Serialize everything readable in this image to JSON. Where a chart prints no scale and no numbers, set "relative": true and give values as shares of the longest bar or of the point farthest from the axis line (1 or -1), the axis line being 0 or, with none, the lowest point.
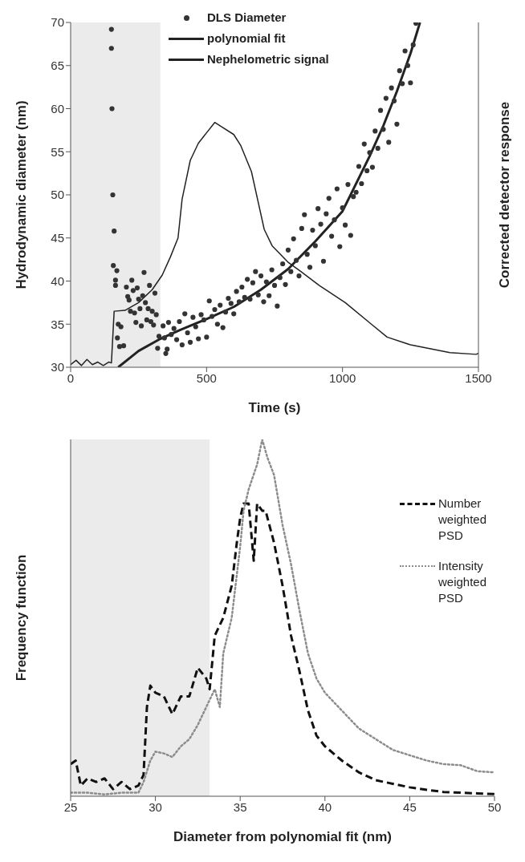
{
  "chart_data": [
    {
      "type": "line",
      "xlabel": "Time (s)",
      "ylabel": "Hydrodynamic diameter (nm)",
      "y2label": "Corrected detector response",
      "xlim": [
        0,
        1500
      ],
      "xticks": [
        0,
        500,
        1000,
        1500
      ],
      "ylim": [
        30,
        70
      ],
      "yticks": [
        30,
        35,
        40,
        45,
        50,
        55,
        60,
        65,
        70
      ],
      "legend": "top",
      "bands": [
        {
          "axis": "x",
          "from": 0,
          "to": 330,
          "color": "#ebebeb"
        }
      ],
      "series": [
        {
          "name": "DLS Diameter",
          "type": "scatter",
          "marker": "circle",
          "color": "#333333",
          "x": [
            150,
            150,
            152,
            155,
            160,
            157,
            170,
            165,
            165,
            175,
            172,
            180,
            185,
            195,
            205,
            210,
            215,
            220,
            225,
            230,
            235,
            240,
            245,
            250,
            255,
            260,
            265,
            270,
            275,
            280,
            285,
            290,
            295,
            300,
            305,
            310,
            315,
            320,
            325,
            340,
            345,
            350,
            355,
            360,
            370,
            380,
            390,
            400,
            410,
            420,
            430,
            440,
            450,
            460,
            470,
            480,
            490,
            500,
            510,
            520,
            530,
            540,
            550,
            560,
            570,
            580,
            590,
            600,
            610,
            620,
            630,
            640,
            650,
            660,
            670,
            680,
            690,
            700,
            710,
            720,
            730,
            740,
            750,
            760,
            770,
            780,
            790,
            800,
            810,
            820,
            830,
            840,
            850,
            860,
            870,
            880,
            890,
            900,
            910,
            920,
            930,
            940,
            950,
            960,
            970,
            980,
            990,
            1000,
            1010,
            1020,
            1030,
            1040,
            1050,
            1060,
            1070,
            1080,
            1090,
            1100,
            1110,
            1120,
            1130,
            1140,
            1150,
            1160,
            1170,
            1180,
            1190,
            1200,
            1210,
            1220,
            1230,
            1240,
            1250,
            1260,
            1270
          ],
          "values": [
            69.2,
            67,
            60,
            50,
            45.8,
            41.8,
            41.2,
            40.1,
            39.5,
            35,
            33.4,
            32.4,
            34.7,
            32.5,
            39.3,
            38.2,
            37.8,
            36.5,
            40.1,
            38.9,
            36.3,
            35.2,
            39.2,
            37.9,
            36.8,
            34.8,
            38.3,
            41,
            37.5,
            35.5,
            36.8,
            39.5,
            35.3,
            36.5,
            34.9,
            38.6,
            36.1,
            32.2,
            33.6,
            34.8,
            33.4,
            31.6,
            32.1,
            35.2,
            33.8,
            34.5,
            33.2,
            35.3,
            32.6,
            36.2,
            34,
            32.9,
            35.8,
            34.7,
            33.3,
            36.1,
            35.5,
            33.5,
            37.7,
            35.9,
            36.7,
            35,
            37.2,
            34.6,
            36.4,
            38,
            37.4,
            36.2,
            38.8,
            37.6,
            39.3,
            38.1,
            40.2,
            37.9,
            39.8,
            41.1,
            38.4,
            40.6,
            37.6,
            39.9,
            38.3,
            41.3,
            39.5,
            37.1,
            40.4,
            42,
            39.6,
            43.6,
            41.1,
            44.9,
            42.4,
            40.6,
            46.1,
            47.7,
            43.1,
            41.6,
            45.9,
            44.1,
            48.4,
            46.6,
            42.3,
            47.8,
            49.6,
            45.2,
            47.1,
            50.7,
            44,
            48.5,
            46.5,
            51.2,
            45.3,
            49.8,
            50.3,
            53.3,
            51.3,
            55.9,
            52.8,
            54.9,
            53.2,
            57.4,
            55.4,
            59.8,
            57.6,
            61.2,
            56.1,
            62.4,
            60.9,
            58.2,
            64.4,
            62.9,
            66.7,
            65,
            63,
            67.4,
            69.9
          ]
        },
        {
          "name": "polynomial fit",
          "line_style": "solid",
          "color": "#222222",
          "x": [
            175,
            250,
            330,
            400,
            500,
            600,
            700,
            800,
            900,
            1000,
            1100,
            1150,
            1200,
            1250,
            1285
          ],
          "values": [
            30,
            31.9,
            33.3,
            34.3,
            35.6,
            37,
            39,
            41.4,
            44.6,
            48.1,
            54.5,
            58,
            62,
            66.4,
            70
          ]
        },
        {
          "name": "Nephelometric signal",
          "line_style": "solid",
          "color": "#222222",
          "x": [
            0,
            20,
            40,
            60,
            80,
            100,
            120,
            140,
            150,
            160,
            200,
            250,
            300,
            337,
            367,
            395,
            410,
            440,
            470,
            500,
            530,
            560,
            600,
            626,
            665,
            712,
            741,
            799,
            847,
            914,
            1010,
            1106,
            1164,
            1250,
            1395,
            1491,
            1500
          ],
          "values": [
            30.3,
            30.8,
            30.2,
            30.9,
            30.3,
            30.6,
            30.2,
            30.6,
            30.5,
            36.5,
            36.6,
            37.5,
            39,
            40.7,
            42.8,
            45,
            49.5,
            54,
            56,
            57.2,
            58.4,
            57.8,
            57,
            55.7,
            52.7,
            46,
            44.1,
            42.2,
            41.1,
            39.5,
            37.5,
            35,
            33.5,
            32.6,
            31.7,
            31.5,
            31.6
          ]
        }
      ]
    },
    {
      "type": "line",
      "relative": true,
      "xlabel": "Diameter from polynomial fit (nm)",
      "ylabel": "Frequency function",
      "xlim": [
        25,
        50
      ],
      "xticks": [
        25,
        30,
        35,
        40,
        45,
        50
      ],
      "legend": "right",
      "bands": [
        {
          "axis": "x",
          "from": 25,
          "to": 33.2,
          "color": "#ebebeb"
        }
      ],
      "series": [
        {
          "name": "Number weighted PSD",
          "line_style": "dashed",
          "color": "#111111",
          "x": [
            25,
            25.3,
            25.6,
            26,
            26.5,
            27,
            27.5,
            28,
            28.5,
            29,
            29.3,
            29.5,
            29.7,
            30,
            30.5,
            31,
            31.5,
            32,
            32.5,
            33,
            33.2,
            33.5,
            34,
            34.5,
            34.8,
            35,
            35.2,
            35.5,
            35.8,
            36,
            36.3,
            36.5,
            37,
            37.5,
            38,
            38.5,
            39,
            39.5,
            40,
            41,
            42,
            43,
            44,
            45,
            46,
            47,
            48,
            49,
            50
          ],
          "values": [
            0.09,
            0.1,
            0.03,
            0.05,
            0.04,
            0.05,
            0.02,
            0.04,
            0.02,
            0.03,
            0.06,
            0.25,
            0.31,
            0.29,
            0.28,
            0.23,
            0.28,
            0.28,
            0.36,
            0.33,
            0.3,
            0.45,
            0.5,
            0.59,
            0.71,
            0.78,
            0.82,
            0.82,
            0.66,
            0.82,
            0.8,
            0.8,
            0.71,
            0.59,
            0.45,
            0.35,
            0.24,
            0.17,
            0.14,
            0.1,
            0.067,
            0.045,
            0.035,
            0.025,
            0.018,
            0.012,
            0.01,
            0.008,
            0.006
          ]
        },
        {
          "name": "Intensity weighted PSD",
          "line_style": "dotted",
          "color": "#8c8c8c",
          "x": [
            25,
            26,
            27,
            28,
            29,
            29.3,
            29.7,
            30,
            30.5,
            31,
            31.5,
            32,
            32.5,
            33,
            33.5,
            33.8,
            34,
            34.5,
            35,
            35.2,
            35.5,
            36,
            36.3,
            36.6,
            37,
            37.5,
            38,
            38.5,
            39,
            39.5,
            40,
            41,
            42,
            43,
            44,
            45,
            46,
            47,
            48,
            49,
            50
          ],
          "values": [
            0.01,
            0.01,
            0.005,
            0.01,
            0.01,
            0.04,
            0.1,
            0.125,
            0.12,
            0.11,
            0.14,
            0.16,
            0.2,
            0.25,
            0.3,
            0.25,
            0.4,
            0.5,
            0.7,
            0.8,
            0.86,
            0.93,
            1,
            0.95,
            0.9,
            0.76,
            0.65,
            0.52,
            0.4,
            0.33,
            0.29,
            0.24,
            0.19,
            0.16,
            0.13,
            0.115,
            0.1,
            0.09,
            0.087,
            0.07,
            0.067
          ]
        }
      ]
    }
  ]
}
